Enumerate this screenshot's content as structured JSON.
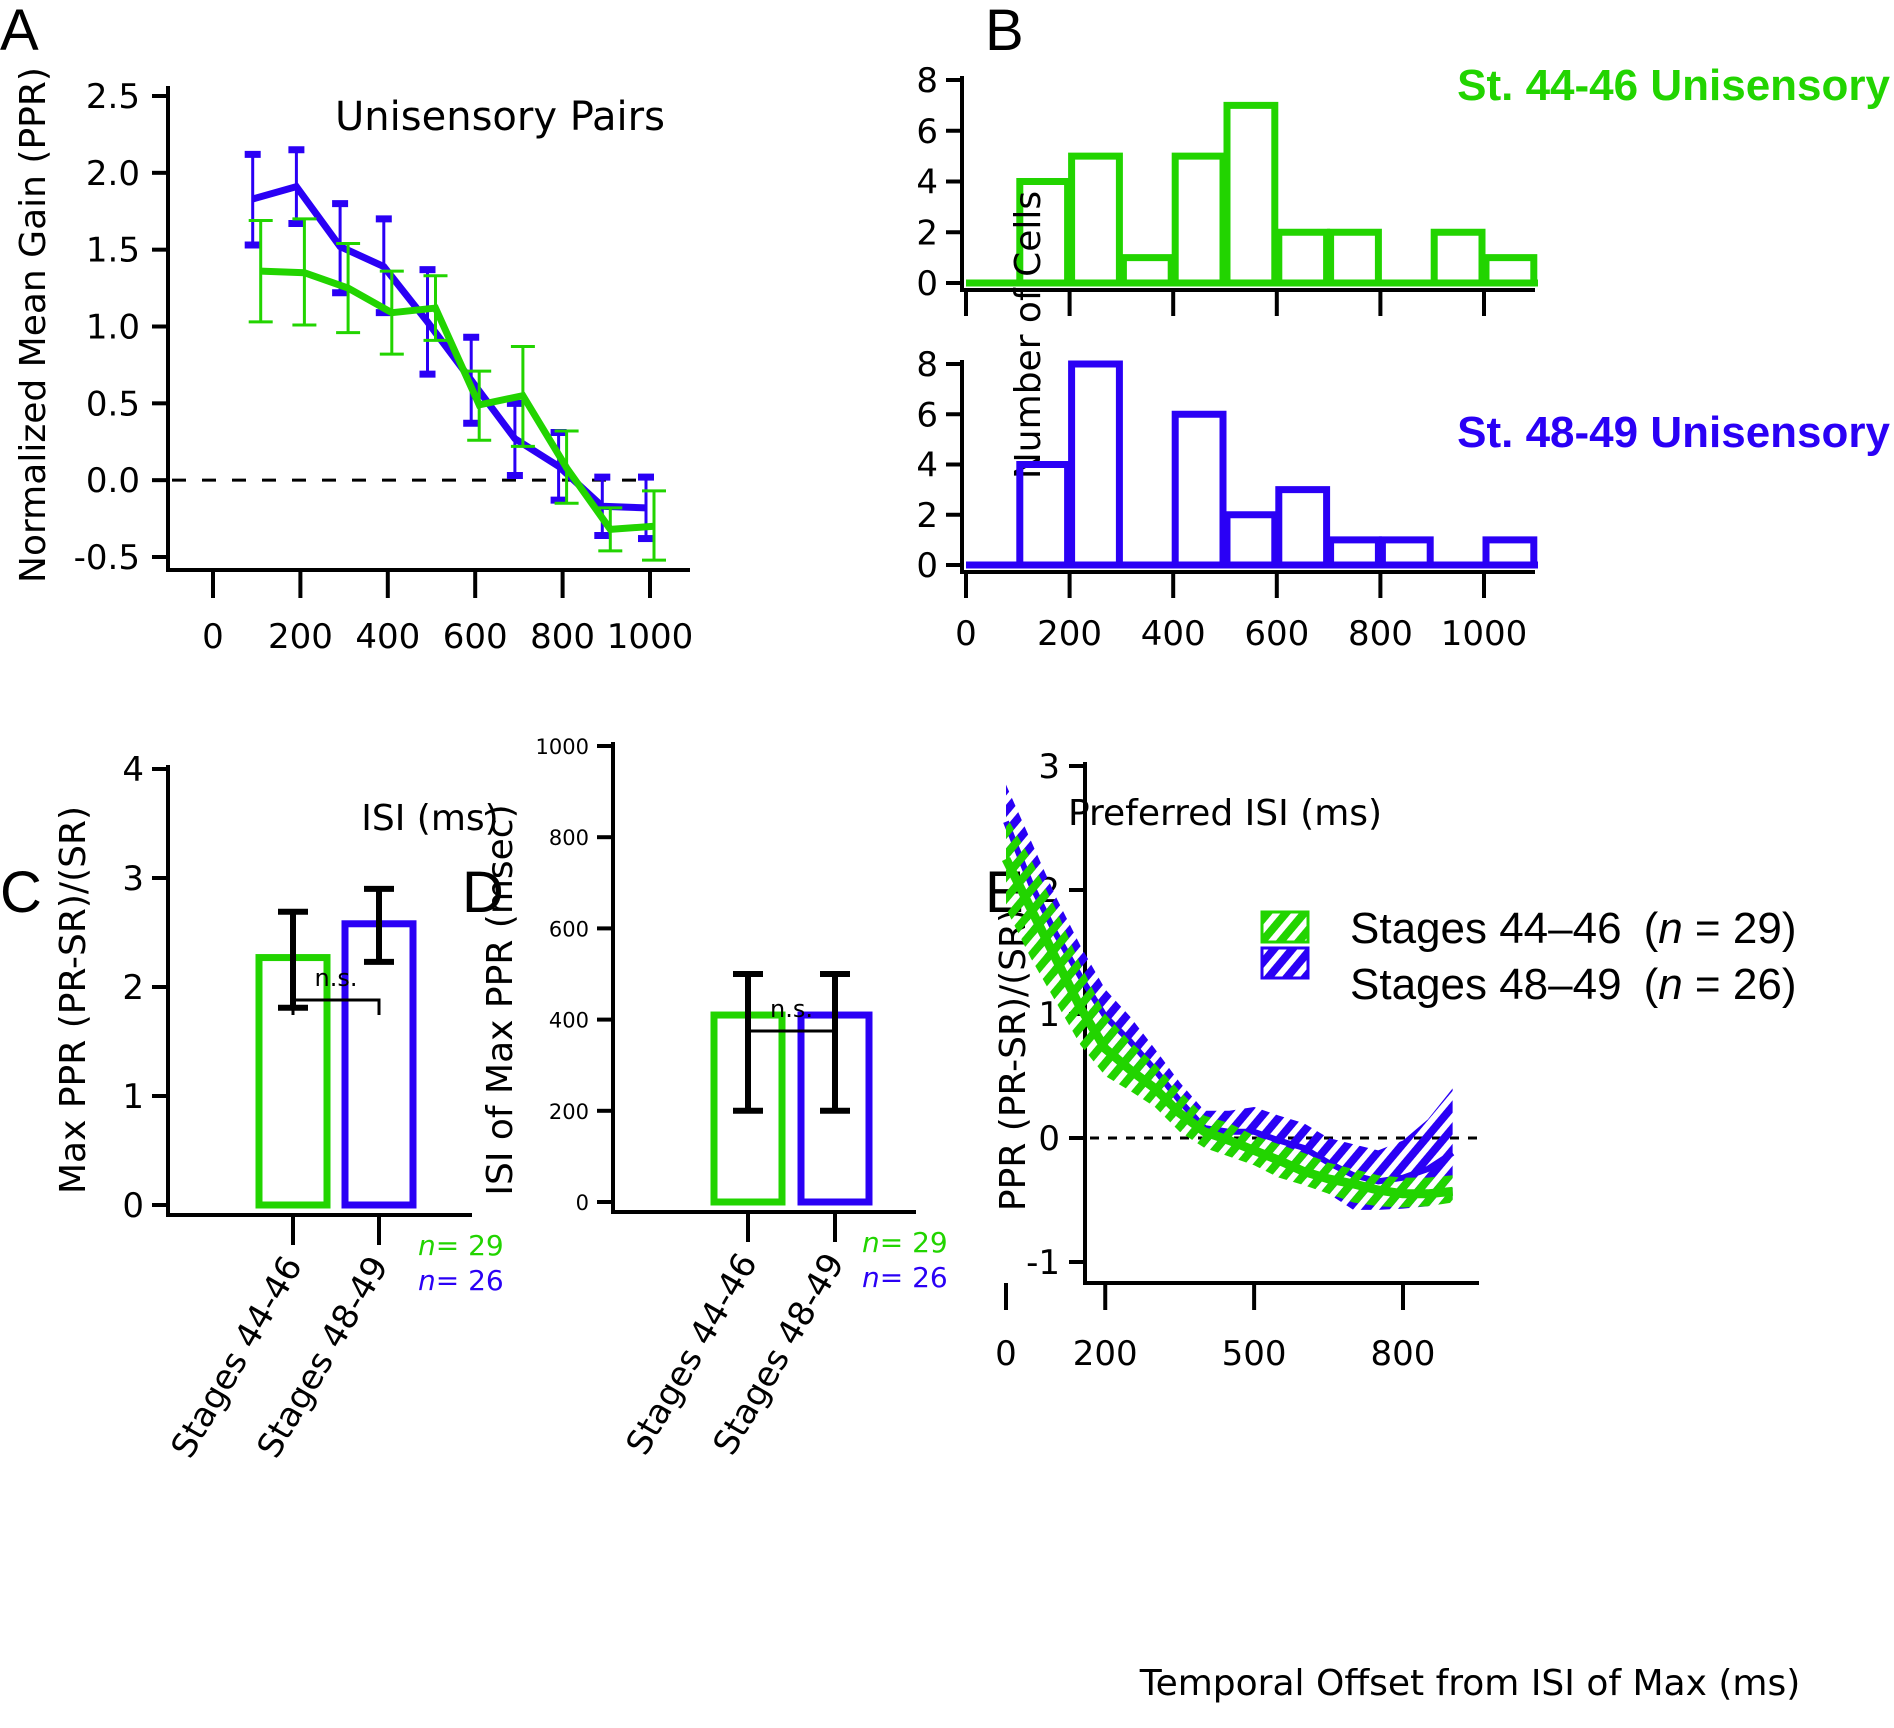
{
  "colors": {
    "green": "#22d400",
    "blue": "#2a00f5",
    "black": "#000000"
  },
  "chart_data": [
    {
      "panel": "A",
      "type": "line",
      "title": "Unisensory Pairs",
      "xlabel": "ISI (ms)",
      "ylabel": "Normalized Mean Gain (PPR)",
      "xlim": [
        -100,
        1100
      ],
      "ylim": [
        -0.5,
        2.5
      ],
      "xticks": [
        "0",
        "200",
        "400",
        "600",
        "800",
        "1000"
      ],
      "yticks": [
        "2.5",
        "2.0",
        "1.5",
        "1.0",
        "0.5",
        "0.0",
        "-0.5"
      ],
      "reference_line": {
        "y": 0.0,
        "style": "dashed"
      },
      "x": [
        100,
        200,
        300,
        400,
        500,
        600,
        700,
        800,
        900,
        1000
      ],
      "series": [
        {
          "name": "St. 48-49",
          "color": "blue",
          "values": [
            1.83,
            1.91,
            1.52,
            1.39,
            1.03,
            0.65,
            0.27,
            0.09,
            -0.17,
            -0.18
          ],
          "err_low": [
            1.53,
            1.67,
            1.22,
            1.09,
            0.69,
            0.37,
            0.03,
            -0.13,
            -0.36,
            -0.38
          ],
          "err_high": [
            2.12,
            2.15,
            1.8,
            1.7,
            1.37,
            0.93,
            0.5,
            0.31,
            0.02,
            0.02
          ]
        },
        {
          "name": "St. 44-46",
          "color": "green",
          "values": [
            1.36,
            1.35,
            1.25,
            1.09,
            1.12,
            0.49,
            0.55,
            0.08,
            -0.32,
            -0.3
          ],
          "err_low": [
            1.03,
            1.01,
            0.96,
            0.82,
            0.91,
            0.26,
            0.22,
            -0.15,
            -0.46,
            -0.52
          ],
          "err_high": [
            1.69,
            1.7,
            1.54,
            1.36,
            1.33,
            0.71,
            0.87,
            0.32,
            -0.18,
            -0.07
          ]
        }
      ]
    },
    {
      "panel": "B-top",
      "type": "bar",
      "title": "St. 44-46 Unisensory",
      "color": "green",
      "ylabel": "Number of Cells",
      "ylim": [
        0,
        8
      ],
      "yticks": [
        "0",
        "2",
        "4",
        "6",
        "8"
      ],
      "bin_edges": [
        0,
        100,
        200,
        300,
        400,
        500,
        600,
        700,
        800,
        900,
        1000,
        1100
      ],
      "values": [
        0,
        4,
        5,
        1,
        5,
        7,
        2,
        2,
        0,
        2,
        1
      ]
    },
    {
      "panel": "B-bottom",
      "type": "bar",
      "title": "St. 48-49 Unisensory",
      "color": "blue",
      "xlabel": "Preferred ISI (ms)",
      "ylabel": "Number of Cells",
      "ylim": [
        0,
        8
      ],
      "yticks": [
        "0",
        "2",
        "4",
        "6",
        "8"
      ],
      "xticks": [
        "0",
        "200",
        "400",
        "600",
        "800",
        "1000"
      ],
      "bin_edges": [
        0,
        100,
        200,
        300,
        400,
        500,
        600,
        700,
        800,
        900,
        1000,
        1100
      ],
      "values": [
        0,
        4,
        8,
        0,
        6,
        2,
        3,
        1,
        1,
        0,
        1
      ]
    },
    {
      "panel": "C",
      "type": "bar",
      "ylabel": "Max PPR (PR-SR)/(SR)",
      "ylim": [
        0,
        4
      ],
      "yticks": [
        "0",
        "1",
        "2",
        "3",
        "4"
      ],
      "categories": [
        "Stages 44-46",
        "Stages 48-49"
      ],
      "bar_colors": [
        "green",
        "blue"
      ],
      "values": [
        2.27,
        2.58
      ],
      "err_low": [
        1.81,
        2.23
      ],
      "err_high": [
        2.69,
        2.9
      ],
      "significance": "n.s.",
      "n_labels": [
        {
          "prefix": "n",
          "text": "= 29",
          "color": "green"
        },
        {
          "prefix": "n",
          "text": "= 26",
          "color": "blue"
        }
      ]
    },
    {
      "panel": "D",
      "type": "bar",
      "ylabel": "ISI of Max PPR (msec)",
      "ylim": [
        0,
        1000
      ],
      "yticks": [
        "0",
        "200",
        "400",
        "600",
        "800",
        "1000"
      ],
      "categories": [
        "Stages 44-46",
        "Stages 48-49"
      ],
      "bar_colors": [
        "green",
        "blue"
      ],
      "values": [
        410,
        410
      ],
      "err_low": [
        200,
        200
      ],
      "err_high": [
        500,
        500
      ],
      "significance": "n.s.",
      "n_labels": [
        {
          "prefix": "n",
          "text": "= 29",
          "color": "green"
        },
        {
          "prefix": "n",
          "text": "= 26",
          "color": "blue"
        }
      ]
    },
    {
      "panel": "E",
      "type": "area",
      "xlabel": "Temporal Offset from ISI of Max (ms)",
      "ylabel": "PPR (PR-SR)/(SR)",
      "xlim": [
        -100,
        1000
      ],
      "ylim": [
        -1,
        3
      ],
      "xticks": [
        {
          "v": 0,
          "t": "0"
        },
        {
          "v": 200,
          "t": "200"
        },
        {
          "v": 500,
          "t": "500"
        },
        {
          "v": 800,
          "t": "800"
        }
      ],
      "yticks": [
        "-1",
        "0",
        "1",
        "2",
        "3"
      ],
      "reference_line": {
        "y": 0,
        "style": "dotted"
      },
      "legend": [
        {
          "label": "Stages 44–46",
          "n": "29",
          "color": "green"
        },
        {
          "label": "Stages 48–49",
          "n": "26",
          "color": "blue"
        }
      ],
      "legend_position": "top-right",
      "x": [
        0,
        50,
        100,
        150,
        200,
        250,
        300,
        350,
        400,
        450,
        500,
        550,
        600,
        650,
        700,
        750,
        800,
        850,
        900
      ],
      "series": [
        {
          "name": "Stages 48–49",
          "color": "blue",
          "mean": [
            2.55,
            2.05,
            1.65,
            1.3,
            0.98,
            0.78,
            0.55,
            0.3,
            0.08,
            0.05,
            0.05,
            -0.02,
            -0.08,
            -0.2,
            -0.3,
            -0.35,
            -0.32,
            -0.25,
            -0.12
          ],
          "lower": [
            2.2,
            1.7,
            1.3,
            1.0,
            0.78,
            0.58,
            0.35,
            0.1,
            -0.08,
            -0.12,
            -0.15,
            -0.22,
            -0.32,
            -0.45,
            -0.58,
            -0.58,
            -0.57,
            -0.55,
            -0.5
          ],
          "upper": [
            2.85,
            2.4,
            1.95,
            1.55,
            1.2,
            0.98,
            0.72,
            0.45,
            0.22,
            0.22,
            0.25,
            0.18,
            0.12,
            0.0,
            -0.05,
            -0.1,
            -0.02,
            0.15,
            0.4
          ]
        },
        {
          "name": "Stages 44–46",
          "color": "green",
          "mean": [
            2.25,
            1.85,
            1.45,
            1.05,
            0.72,
            0.55,
            0.4,
            0.2,
            0.05,
            -0.02,
            -0.1,
            -0.18,
            -0.27,
            -0.33,
            -0.37,
            -0.42,
            -0.45,
            -0.45,
            -0.43
          ],
          "lower": [
            1.85,
            1.45,
            1.1,
            0.75,
            0.5,
            0.38,
            0.25,
            0.05,
            -0.08,
            -0.15,
            -0.22,
            -0.32,
            -0.38,
            -0.45,
            -0.52,
            -0.55,
            -0.56,
            -0.55,
            -0.52
          ],
          "upper": [
            2.6,
            2.25,
            1.85,
            1.4,
            1.0,
            0.78,
            0.6,
            0.38,
            0.18,
            0.12,
            0.02,
            -0.05,
            -0.12,
            -0.2,
            -0.25,
            -0.3,
            -0.32,
            -0.32,
            -0.3
          ]
        }
      ]
    }
  ],
  "panel_letters": [
    "A",
    "B",
    "C",
    "D",
    "E"
  ]
}
